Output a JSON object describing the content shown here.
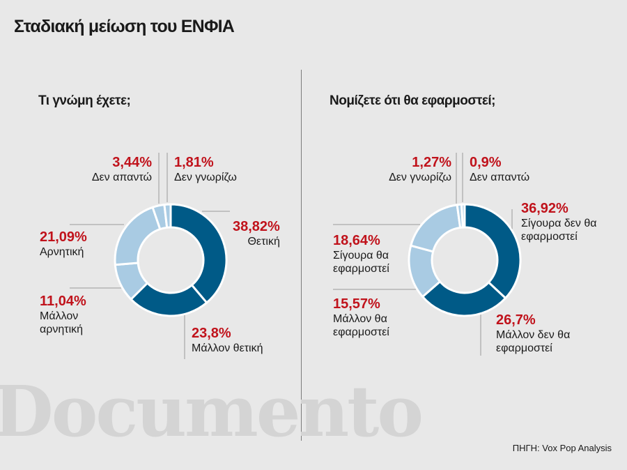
{
  "title": "Σταδιακή μείωση του ΕΝΦΙΑ",
  "source": "ΠΗΓΗ: Vox Pop Analysis",
  "watermark": "Documento",
  "colors": {
    "dark": "#005a87",
    "light": "#a9cbe3",
    "accent": "#c0121b"
  },
  "chart_data": [
    {
      "type": "pie",
      "donut": true,
      "title": "Τι γνώμη έχετε;",
      "slices": [
        {
          "label": "Θετική",
          "pct_label": "38,82%",
          "value": 38.82,
          "color": "dark"
        },
        {
          "label": "Μάλλον θετική",
          "pct_label": "23,8%",
          "value": 23.8,
          "color": "dark"
        },
        {
          "label": "Μάλλον αρνητική",
          "pct_label": "11,04%",
          "value": 11.04,
          "color": "light"
        },
        {
          "label": "Αρνητική",
          "pct_label": "21,09%",
          "value": 21.09,
          "color": "light"
        },
        {
          "label": "Δεν απαντώ",
          "pct_label": "3,44%",
          "value": 3.44,
          "color": "light"
        },
        {
          "label": "Δεν γνωρίζω",
          "pct_label": "1,81%",
          "value": 1.81,
          "color": "light"
        }
      ]
    },
    {
      "type": "pie",
      "donut": true,
      "title": "Νομίζετε ότι θα εφαρμοστεί;",
      "slices": [
        {
          "label": "Σίγουρα δεν θα εφαρμοστεί",
          "pct_label": "36,92%",
          "value": 36.92,
          "color": "dark"
        },
        {
          "label": "Μάλλον δεν θα εφαρμοστεί",
          "pct_label": "26,7%",
          "value": 26.7,
          "color": "dark"
        },
        {
          "label": "Μάλλον θα εφαρμοστεί",
          "pct_label": "15,57%",
          "value": 15.57,
          "color": "light"
        },
        {
          "label": "Σίγουρα θα εφαρμοστεί",
          "pct_label": "18,64%",
          "value": 18.64,
          "color": "light"
        },
        {
          "label": "Δεν γνωρίζω",
          "pct_label": "1,27%",
          "value": 1.27,
          "color": "light"
        },
        {
          "label": "Δεν απαντώ",
          "pct_label": "0,9%",
          "value": 0.9,
          "color": "light"
        }
      ]
    }
  ]
}
